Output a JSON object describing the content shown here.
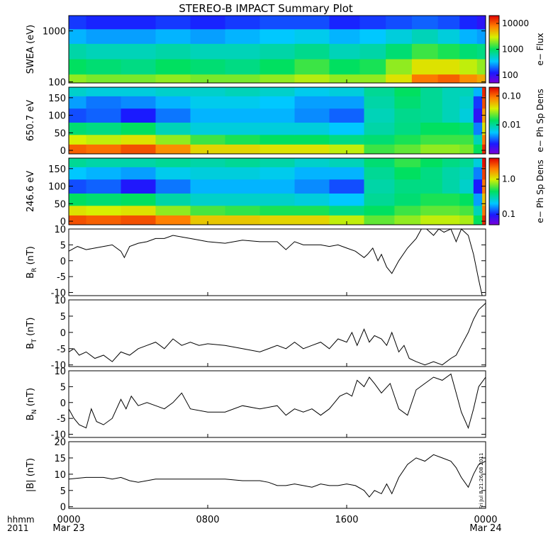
{
  "title": "STEREO-B IMPACT Summary Plot",
  "footer": {
    "time_label": "hhmm",
    "year_label": "2011",
    "stamp": "Fri Jul  8 21:26:08 2011"
  },
  "chart_data": [
    {
      "type": "heatmap",
      "id": "swea",
      "ylabel": "SWEA (eV)",
      "ylog": true,
      "ylim": [
        95,
        2000
      ],
      "yticks": [
        {
          "v": 1000,
          "label": "1000"
        },
        {
          "v": 100,
          "label": "100"
        }
      ],
      "colorbar": {
        "label": "e− Flux",
        "log": true,
        "range": [
          50,
          20000
        ],
        "ticks": [
          {
            "v": 10000,
            "label": "10000"
          },
          {
            "v": 1000,
            "label": "1000"
          },
          {
            "v": 100,
            "label": "100"
          }
        ]
      },
      "x_hours": [
        0,
        2,
        4,
        6,
        8,
        10,
        12,
        14,
        16,
        17.5,
        19,
        20.5,
        22,
        23,
        24
      ],
      "y_values": [
        100,
        200,
        400,
        800,
        1500
      ],
      "color_levels": [
        [
          0.62,
          0.6,
          0.6,
          0.62,
          0.6,
          0.6,
          0.62,
          0.65,
          0.62,
          0.62,
          0.7,
          0.85,
          0.88,
          0.82,
          0.78
        ],
        [
          0.5,
          0.48,
          0.46,
          0.5,
          0.48,
          0.46,
          0.5,
          0.55,
          0.5,
          0.52,
          0.62,
          0.7,
          0.7,
          0.66,
          0.62
        ],
        [
          0.42,
          0.4,
          0.4,
          0.42,
          0.4,
          0.4,
          0.42,
          0.45,
          0.4,
          0.42,
          0.48,
          0.55,
          0.52,
          0.48,
          0.46
        ],
        [
          0.3,
          0.28,
          0.28,
          0.3,
          0.28,
          0.3,
          0.32,
          0.34,
          0.3,
          0.32,
          0.36,
          0.4,
          0.36,
          0.3,
          0.28
        ],
        [
          0.18,
          0.16,
          0.16,
          0.18,
          0.16,
          0.18,
          0.2,
          0.2,
          0.16,
          0.18,
          0.2,
          0.22,
          0.2,
          0.16,
          0.12
        ]
      ]
    },
    {
      "type": "heatmap",
      "id": "pad650",
      "ylabel": "650.7 eV",
      "ylim": [
        -10,
        180
      ],
      "yticks": [
        {
          "v": 150,
          "label": "150"
        },
        {
          "v": 100,
          "label": "100"
        },
        {
          "v": 50,
          "label": "50"
        },
        {
          "v": 0,
          "label": "0"
        }
      ],
      "colorbar": {
        "label": "e− Ph Sp Dens",
        "log": true,
        "range": [
          0.001,
          0.2
        ],
        "ticks": [
          {
            "v": 0.1,
            "label": "0.10"
          },
          {
            "v": 0.01,
            "label": "0.01"
          }
        ]
      },
      "x_hours": [
        0,
        2,
        4,
        6,
        8,
        10,
        12,
        14,
        16,
        18,
        19.5,
        21,
        22,
        23,
        23.6,
        24
      ],
      "y_values": [
        5,
        30,
        60,
        100,
        140,
        170
      ],
      "color_levels": [
        [
          0.88,
          0.86,
          0.9,
          0.82,
          0.72,
          0.72,
          0.7,
          0.7,
          0.66,
          0.55,
          0.58,
          0.62,
          0.62,
          0.6,
          0.5,
          0.95
        ],
        [
          0.68,
          0.66,
          0.7,
          0.62,
          0.55,
          0.52,
          0.5,
          0.5,
          0.46,
          0.48,
          0.52,
          0.55,
          0.55,
          0.55,
          0.4,
          0.85
        ],
        [
          0.48,
          0.46,
          0.5,
          0.4,
          0.36,
          0.36,
          0.36,
          0.36,
          0.32,
          0.42,
          0.46,
          0.5,
          0.5,
          0.48,
          0.25,
          0.7
        ],
        [
          0.2,
          0.22,
          0.15,
          0.24,
          0.3,
          0.3,
          0.3,
          0.26,
          0.22,
          0.4,
          0.45,
          0.44,
          0.4,
          0.36,
          0.12,
          0.8
        ],
        [
          0.28,
          0.24,
          0.26,
          0.3,
          0.34,
          0.34,
          0.32,
          0.28,
          0.28,
          0.42,
          0.48,
          0.44,
          0.4,
          0.38,
          0.18,
          0.9
        ],
        [
          0.38,
          0.36,
          0.36,
          0.38,
          0.38,
          0.4,
          0.38,
          0.34,
          0.36,
          0.44,
          0.5,
          0.44,
          0.4,
          0.4,
          0.3,
          0.95
        ]
      ]
    },
    {
      "type": "heatmap",
      "id": "pad246",
      "ylabel": "246.6 eV",
      "ylim": [
        -10,
        180
      ],
      "yticks": [
        {
          "v": 150,
          "label": "150"
        },
        {
          "v": 100,
          "label": "100"
        },
        {
          "v": 50,
          "label": "50"
        },
        {
          "v": 0,
          "label": "0"
        }
      ],
      "colorbar": {
        "label": "e− Ph Sp Dens",
        "log": true,
        "range": [
          0.05,
          4
        ],
        "ticks": [
          {
            "v": 1.0,
            "label": "1.0"
          },
          {
            "v": 0.1,
            "label": "0.1"
          }
        ]
      },
      "x_hours": [
        0,
        2,
        4,
        6,
        8,
        10,
        12,
        14,
        16,
        18,
        19.5,
        21,
        22,
        23,
        23.6,
        24
      ],
      "y_values": [
        5,
        30,
        60,
        100,
        140,
        170
      ],
      "color_levels": [
        [
          0.9,
          0.88,
          0.9,
          0.84,
          0.74,
          0.74,
          0.72,
          0.72,
          0.66,
          0.58,
          0.62,
          0.66,
          0.66,
          0.64,
          0.5,
          0.95
        ],
        [
          0.7,
          0.68,
          0.7,
          0.62,
          0.56,
          0.54,
          0.52,
          0.52,
          0.46,
          0.5,
          0.55,
          0.58,
          0.58,
          0.56,
          0.4,
          0.85
        ],
        [
          0.5,
          0.48,
          0.5,
          0.42,
          0.38,
          0.38,
          0.38,
          0.36,
          0.32,
          0.44,
          0.48,
          0.52,
          0.52,
          0.5,
          0.28,
          0.75
        ],
        [
          0.2,
          0.22,
          0.14,
          0.24,
          0.3,
          0.3,
          0.3,
          0.26,
          0.2,
          0.42,
          0.46,
          0.46,
          0.42,
          0.38,
          0.15,
          0.85
        ],
        [
          0.32,
          0.3,
          0.28,
          0.34,
          0.36,
          0.36,
          0.34,
          0.3,
          0.3,
          0.44,
          0.5,
          0.46,
          0.42,
          0.4,
          0.25,
          0.92
        ],
        [
          0.44,
          0.42,
          0.42,
          0.44,
          0.42,
          0.44,
          0.42,
          0.38,
          0.4,
          0.48,
          0.54,
          0.5,
          0.46,
          0.44,
          0.36,
          0.98
        ]
      ]
    },
    {
      "type": "line",
      "id": "br",
      "ylabel": "B_R (nT)",
      "ylim": [
        -11,
        10
      ],
      "yticks": [
        {
          "v": 10,
          "label": "10"
        },
        {
          "v": 5,
          "label": "5"
        },
        {
          "v": 0,
          "label": "0"
        },
        {
          "v": -5,
          "label": "-5"
        },
        {
          "v": -10,
          "label": "-10"
        }
      ],
      "x": [
        0,
        0.5,
        1,
        1.5,
        2,
        2.5,
        3,
        3.2,
        3.5,
        4,
        4.5,
        5,
        5.5,
        6,
        6.5,
        7,
        8,
        9,
        10,
        11,
        12,
        12.5,
        13,
        13.5,
        14,
        14.5,
        15,
        15.5,
        16,
        16.5,
        17,
        17.2,
        17.5,
        17.8,
        18,
        18.3,
        18.6,
        19,
        19.5,
        20,
        20.3,
        20.6,
        21,
        21.3,
        21.6,
        22,
        22.3,
        22.6,
        23,
        23.3,
        23.6,
        23.8
      ],
      "values": [
        3,
        4.5,
        3.5,
        4,
        4.5,
        5,
        3,
        1,
        4.5,
        5.5,
        6,
        7,
        7,
        8,
        7.5,
        7,
        6,
        5.5,
        6.5,
        6,
        6,
        3.5,
        6,
        5,
        5,
        5,
        4.5,
        5,
        4,
        3,
        1,
        2,
        4,
        0,
        2,
        -2,
        -4,
        0,
        4,
        7,
        10,
        10,
        8,
        10,
        9,
        12,
        6,
        10,
        8,
        2,
        -6,
        -11
      ]
    },
    {
      "type": "line",
      "id": "bt",
      "ylabel": "B_T (nT)",
      "ylim": [
        -10.5,
        10
      ],
      "yticks": [
        {
          "v": 10,
          "label": "10"
        },
        {
          "v": 5,
          "label": "5"
        },
        {
          "v": 0,
          "label": "0"
        },
        {
          "v": -5,
          "label": "-5"
        },
        {
          "v": -10,
          "label": "-10"
        }
      ],
      "x": [
        0,
        0.3,
        0.6,
        1,
        1.5,
        2,
        2.5,
        3,
        3.5,
        4,
        4.5,
        5,
        5.5,
        6,
        6.5,
        7,
        7.5,
        8,
        9,
        10,
        11,
        12,
        12.5,
        13,
        13.5,
        14,
        14.5,
        15,
        15.5,
        16,
        16.3,
        16.6,
        17,
        17.3,
        17.6,
        18,
        18.3,
        18.6,
        19,
        19.3,
        19.6,
        20,
        20.5,
        21,
        21.5,
        22,
        22.3,
        22.6,
        23,
        23.3,
        23.6,
        24
      ],
      "values": [
        -6,
        -5,
        -7,
        -6,
        -8,
        -7,
        -9,
        -6,
        -7,
        -5,
        -4,
        -3,
        -5,
        -2,
        -4,
        -3,
        -4,
        -3.5,
        -4,
        -5,
        -6,
        -4,
        -5,
        -3,
        -5,
        -4,
        -3,
        -5,
        -2,
        -3,
        0,
        -4,
        1,
        -3,
        -1,
        -2,
        -4,
        0,
        -6,
        -4,
        -8,
        -9,
        -10,
        -9,
        -10,
        -8,
        -7,
        -4,
        0,
        4,
        7,
        9
      ]
    },
    {
      "type": "line",
      "id": "bn",
      "ylabel": "B_N (nT)",
      "ylim": [
        -11,
        10
      ],
      "yticks": [
        {
          "v": 10,
          "label": "10"
        },
        {
          "v": 5,
          "label": "5"
        },
        {
          "v": 0,
          "label": "0"
        },
        {
          "v": -5,
          "label": "-5"
        },
        {
          "v": -10,
          "label": "-10"
        }
      ],
      "x": [
        0,
        0.3,
        0.6,
        1,
        1.3,
        1.6,
        2,
        2.5,
        3,
        3.3,
        3.6,
        4,
        4.5,
        5,
        5.5,
        6,
        6.5,
        7,
        8,
        9,
        10,
        11,
        12,
        12.5,
        13,
        13.5,
        14,
        14.5,
        15,
        15.3,
        15.6,
        16,
        16.3,
        16.6,
        17,
        17.3,
        17.6,
        18,
        18.5,
        19,
        19.5,
        20,
        20.5,
        21,
        21.5,
        22,
        22.3,
        22.6,
        23,
        23.3,
        23.6,
        24
      ],
      "values": [
        -2,
        -5,
        -7,
        -8,
        -2,
        -6,
        -7,
        -5,
        1,
        -2,
        2,
        -1,
        0,
        -1,
        -2,
        0,
        3,
        -2,
        -3,
        -3,
        -1,
        -2,
        -1,
        -4,
        -2,
        -3,
        -2,
        -4,
        -2,
        0,
        2,
        3,
        2,
        7,
        5,
        8,
        6,
        3,
        6,
        -2,
        -4,
        4,
        6,
        8,
        7,
        9,
        3,
        -3,
        -8,
        -2,
        5,
        8
      ]
    },
    {
      "type": "line",
      "id": "bmag",
      "ylabel": "|B| (nT)",
      "ylim": [
        -0.5,
        20
      ],
      "yticks": [
        {
          "v": 20,
          "label": "20"
        },
        {
          "v": 15,
          "label": "15"
        },
        {
          "v": 10,
          "label": "10"
        },
        {
          "v": 5,
          "label": "5"
        },
        {
          "v": 0,
          "label": "0"
        }
      ],
      "x": [
        0,
        1,
        2,
        2.5,
        3,
        3.5,
        4,
        5,
        6,
        7,
        8,
        9,
        10,
        11,
        11.5,
        12,
        12.5,
        13,
        13.5,
        14,
        14.5,
        15,
        15.5,
        16,
        16.5,
        17,
        17.3,
        17.6,
        18,
        18.3,
        18.6,
        19,
        19.5,
        20,
        20.5,
        21,
        21.5,
        22,
        22.3,
        22.6,
        23,
        23.3,
        23.6,
        24
      ],
      "values": [
        8.5,
        9,
        9,
        8.5,
        9,
        8,
        7.5,
        8.5,
        8.5,
        8.5,
        8.5,
        8.5,
        8,
        8,
        7.5,
        6.5,
        6.5,
        7,
        6.5,
        6,
        7,
        6.5,
        6.5,
        7,
        6.5,
        5,
        3,
        5,
        4,
        7,
        4,
        9,
        13,
        15,
        14,
        16,
        15,
        14,
        12,
        9,
        6,
        10,
        13,
        14
      ]
    }
  ],
  "x_axis": {
    "xlim_hours": [
      0,
      24
    ],
    "ticks": [
      {
        "v": 0,
        "label": "0000",
        "sub": "Mar 23"
      },
      {
        "v": 8,
        "label": "0800",
        "sub": ""
      },
      {
        "v": 16,
        "label": "1600",
        "sub": ""
      },
      {
        "v": 24,
        "label": "0000",
        "sub": "Mar 24"
      }
    ]
  }
}
